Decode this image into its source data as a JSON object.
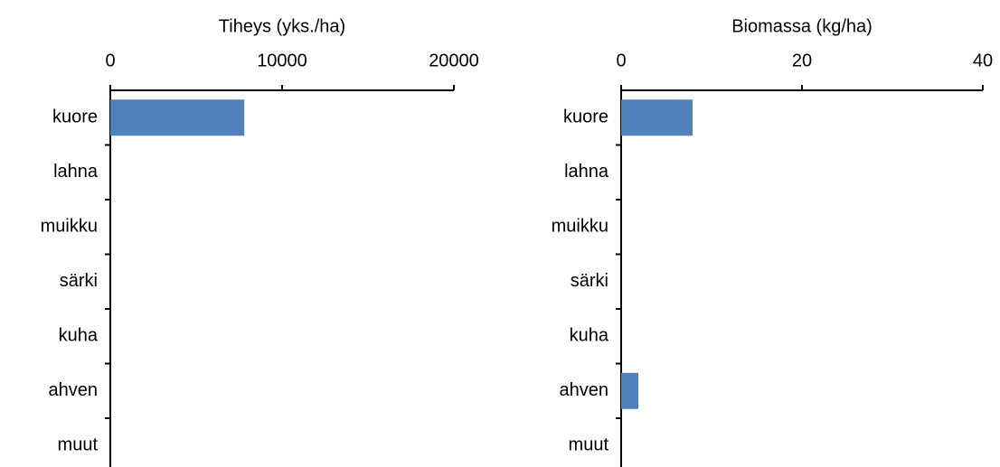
{
  "chart_data": [
    {
      "type": "bar",
      "orientation": "horizontal",
      "x_label": "Tiheys (yks./ha)",
      "categories": [
        "kuore",
        "lahna",
        "muikku",
        "särki",
        "kuha",
        "ahven",
        "muut"
      ],
      "values": [
        7800,
        0,
        0,
        0,
        0,
        0,
        0
      ],
      "color": "#4f81bd",
      "xlim": [
        0,
        20000
      ],
      "xticks": [
        0,
        10000,
        20000
      ]
    },
    {
      "type": "bar",
      "orientation": "horizontal",
      "x_label": "Biomassa (kg/ha)",
      "categories": [
        "kuore",
        "lahna",
        "muikku",
        "särki",
        "kuha",
        "ahven",
        "muut"
      ],
      "values": [
        7.9,
        0,
        0,
        0,
        0,
        1.9,
        0
      ],
      "color": "#4f81bd",
      "xlim": [
        0,
        40
      ],
      "xticks": [
        0,
        20,
        40
      ]
    }
  ]
}
